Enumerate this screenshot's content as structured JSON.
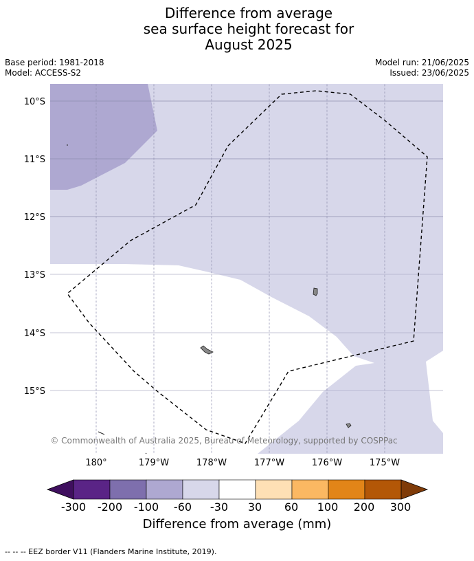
{
  "title_lines": [
    "Difference from average",
    "sea surface height forecast for",
    "August 2025"
  ],
  "meta": {
    "base_period": "Base period: 1981-2018",
    "model": "Model: ACCESS-S2",
    "model_run": "Model run: 21/06/2025",
    "issued": "Issued: 23/06/2025"
  },
  "map": {
    "lat_labels": [
      "10°S",
      "11°S",
      "12°S",
      "13°S",
      "14°S",
      "15°S"
    ],
    "lon_labels": [
      "180°",
      "179°W",
      "178°W",
      "177°W",
      "176°W",
      "175°W"
    ],
    "lat_values": [
      -10,
      -11,
      -12,
      -13,
      -14,
      -15
    ],
    "lon_values": [
      180,
      -179,
      -178,
      -177,
      -176,
      -175
    ],
    "copyright": "© Commonwealth of Australia 2025, Bureau of Meteorology, supported by COSPPac"
  },
  "colorbar": {
    "labels": [
      "-300",
      "-200",
      "-100",
      "-60",
      "-30",
      "30",
      "60",
      "100",
      "200",
      "300"
    ],
    "colors": [
      "#3f0f5e",
      "#5a2486",
      "#7e6fad",
      "#aea8d1",
      "#d7d7ea",
      "#ffffff",
      "#fee0b5",
      "#fbb862",
      "#e28518",
      "#b35707",
      "#7f3b08"
    ],
    "title": "Difference from average (mm)"
  },
  "footer": "--  --  -- EEZ border V11 (Flanders Marine Institute, 2019)."
}
